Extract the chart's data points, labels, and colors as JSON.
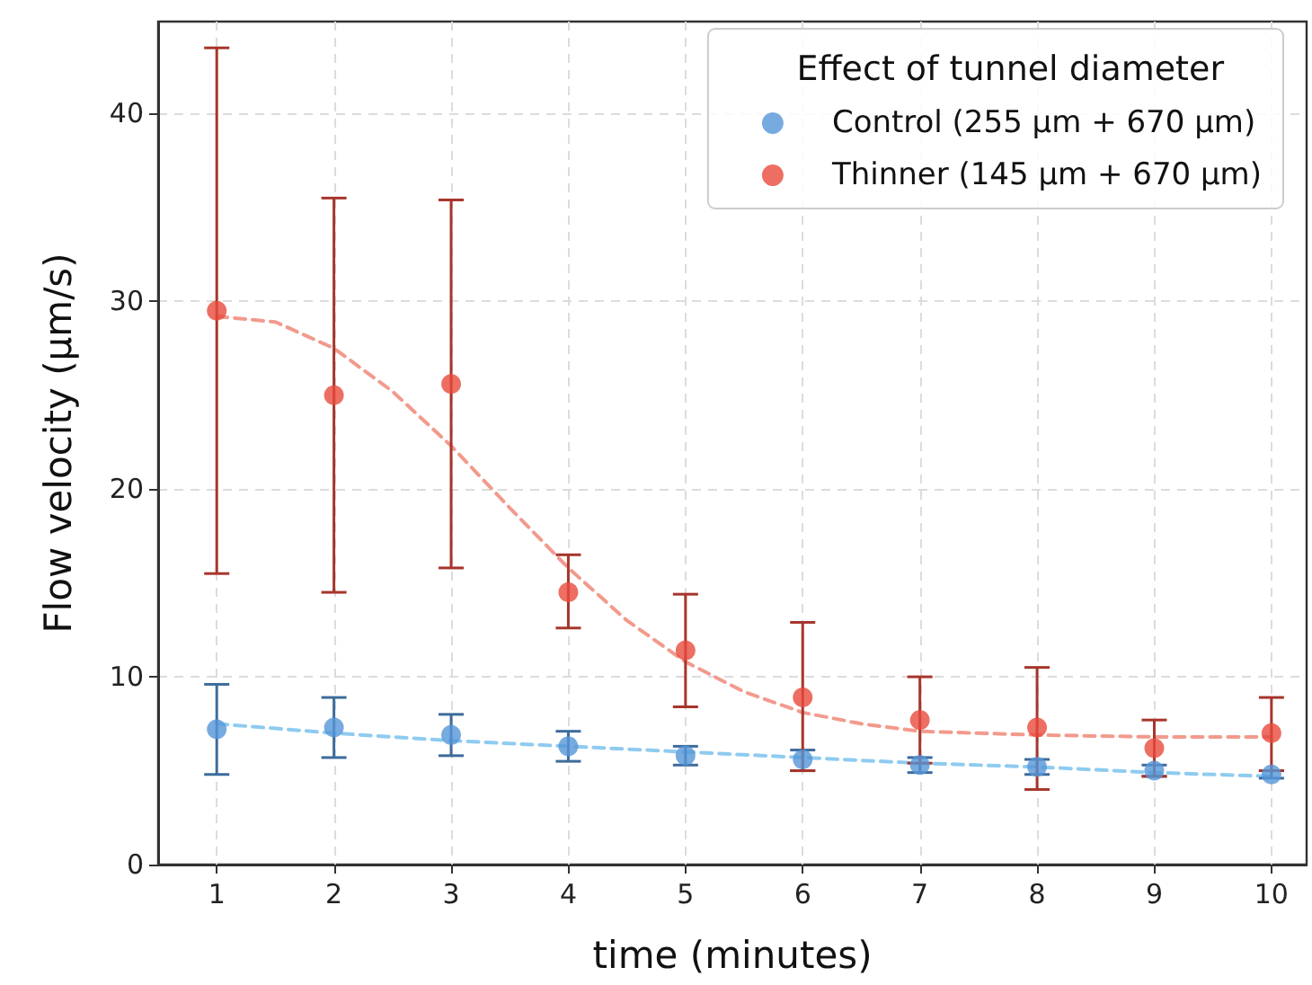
{
  "chart_data": {
    "type": "scatter",
    "xlabel": "time (minutes)",
    "ylabel": "Flow velocity (µm/s)",
    "legend_title": "Effect of tunnel diameter",
    "x": [
      1,
      2,
      3,
      4,
      5,
      6,
      7,
      8,
      9,
      10
    ],
    "series": [
      {
        "name": "Control (255 µm + 670 µm)",
        "color": "#5596d8",
        "marker": "circle",
        "values": [
          7.2,
          7.3,
          6.9,
          6.3,
          5.8,
          5.6,
          5.3,
          5.2,
          5.0,
          4.8
        ],
        "errors": [
          [
            4.8,
            9.6
          ],
          [
            5.7,
            8.9
          ],
          [
            5.8,
            8.0
          ],
          [
            5.5,
            7.1
          ],
          [
            5.3,
            6.3
          ],
          [
            5.0,
            6.1
          ],
          [
            4.9,
            5.7
          ],
          [
            4.8,
            5.6
          ],
          [
            4.7,
            5.3
          ],
          [
            4.6,
            5.0
          ]
        ]
      },
      {
        "name": "Thinner (145 µm + 670 µm)",
        "color": "#e84a3c",
        "marker": "circle",
        "values": [
          29.5,
          25.0,
          25.6,
          14.5,
          11.4,
          8.9,
          7.7,
          7.3,
          6.2,
          7.0
        ],
        "errors": [
          [
            15.5,
            43.5
          ],
          [
            14.5,
            35.5
          ],
          [
            15.8,
            35.4
          ],
          [
            12.6,
            16.5
          ],
          [
            8.4,
            14.4
          ],
          [
            5.0,
            12.9
          ],
          [
            5.4,
            10.0
          ],
          [
            4.0,
            10.5
          ],
          [
            4.7,
            7.7
          ],
          [
            5.0,
            8.9
          ]
        ]
      },
      {
        "type": "line",
        "color": "#8ecbf0",
        "marker": "none",
        "line_style": "dashed",
        "x": [
          1,
          2,
          3,
          4,
          5,
          6,
          7,
          8,
          9,
          10
        ],
        "values": [
          7.5,
          7.0,
          6.6,
          6.3,
          6.0,
          5.7,
          5.4,
          5.2,
          4.9,
          4.7
        ]
      },
      {
        "type": "line",
        "color": "#f29a8c",
        "marker": "none",
        "line_style": "dashed",
        "x": [
          1,
          1.5,
          2,
          2.5,
          3,
          3.5,
          4,
          4.5,
          5,
          5.5,
          6,
          6.5,
          7,
          7.5,
          8,
          9,
          10
        ],
        "values": [
          29.2,
          28.9,
          27.5,
          25.2,
          22.3,
          19.0,
          15.8,
          13.0,
          10.8,
          9.2,
          8.1,
          7.5,
          7.1,
          7.0,
          6.9,
          6.8,
          6.8
        ]
      }
    ],
    "xlim": [
      0.5,
      10.3
    ],
    "xticks": [
      1,
      2,
      3,
      4,
      5,
      6,
      7,
      8,
      9,
      10
    ],
    "ylim": [
      0,
      44.9
    ],
    "yticks": [
      0,
      10,
      20,
      30,
      40
    ],
    "grid": true,
    "legend": "top right"
  }
}
